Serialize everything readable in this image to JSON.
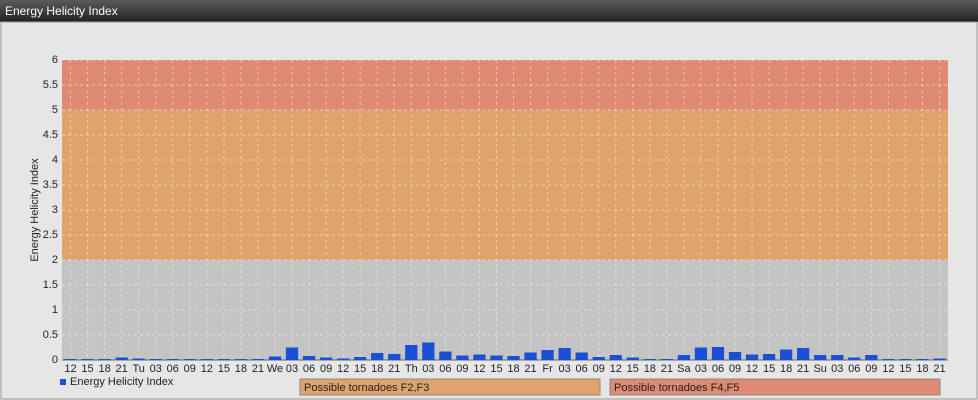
{
  "window_title": "Energy Helicity Index",
  "chart_data": {
    "type": "bar",
    "y_label": "Energy Helicity Index",
    "categories": [
      "12",
      "15",
      "18",
      "21",
      "Tu",
      "03",
      "06",
      "09",
      "12",
      "15",
      "18",
      "21",
      "We",
      "03",
      "06",
      "09",
      "12",
      "15",
      "18",
      "21",
      "Th",
      "03",
      "06",
      "09",
      "12",
      "15",
      "18",
      "21",
      "Fr",
      "03",
      "06",
      "09",
      "12",
      "15",
      "18",
      "21",
      "Sa",
      "03",
      "06",
      "09",
      "12",
      "15",
      "18",
      "21",
      "Su",
      "03",
      "06",
      "09",
      "12",
      "15",
      "18",
      "21"
    ],
    "series": [
      {
        "name": "Energy Helicity Index",
        "color": "#1a4fd6",
        "values": [
          0.02,
          0.02,
          0.02,
          0.05,
          0.03,
          0.02,
          0.02,
          0.02,
          0.02,
          0.02,
          0.02,
          0.02,
          0.07,
          0.25,
          0.08,
          0.05,
          0.03,
          0.06,
          0.14,
          0.12,
          0.3,
          0.35,
          0.17,
          0.09,
          0.11,
          0.09,
          0.08,
          0.15,
          0.2,
          0.24,
          0.15,
          0.06,
          0.1,
          0.05,
          0.02,
          0.02,
          0.1,
          0.25,
          0.26,
          0.16,
          0.11,
          0.12,
          0.21,
          0.24,
          0.1,
          0.1,
          0.05,
          0.1,
          0.02,
          0.02,
          0.02,
          0.03
        ]
      }
    ],
    "ylim": [
      0,
      6
    ],
    "yticks": [
      0,
      0.5,
      1,
      1.5,
      2,
      2.5,
      3,
      3.5,
      4,
      4.5,
      5,
      5.5,
      6
    ],
    "grid": true,
    "bands": [
      {
        "from": 0,
        "to": 2,
        "color": "#c4c4c4"
      },
      {
        "from": 2,
        "to": 5,
        "color": "#dea46c",
        "label": "Possible tornadoes F2,F3"
      },
      {
        "from": 5,
        "to": 6,
        "color": "#df8a72",
        "label": "Possible tornadoes F4,F5"
      }
    ]
  }
}
